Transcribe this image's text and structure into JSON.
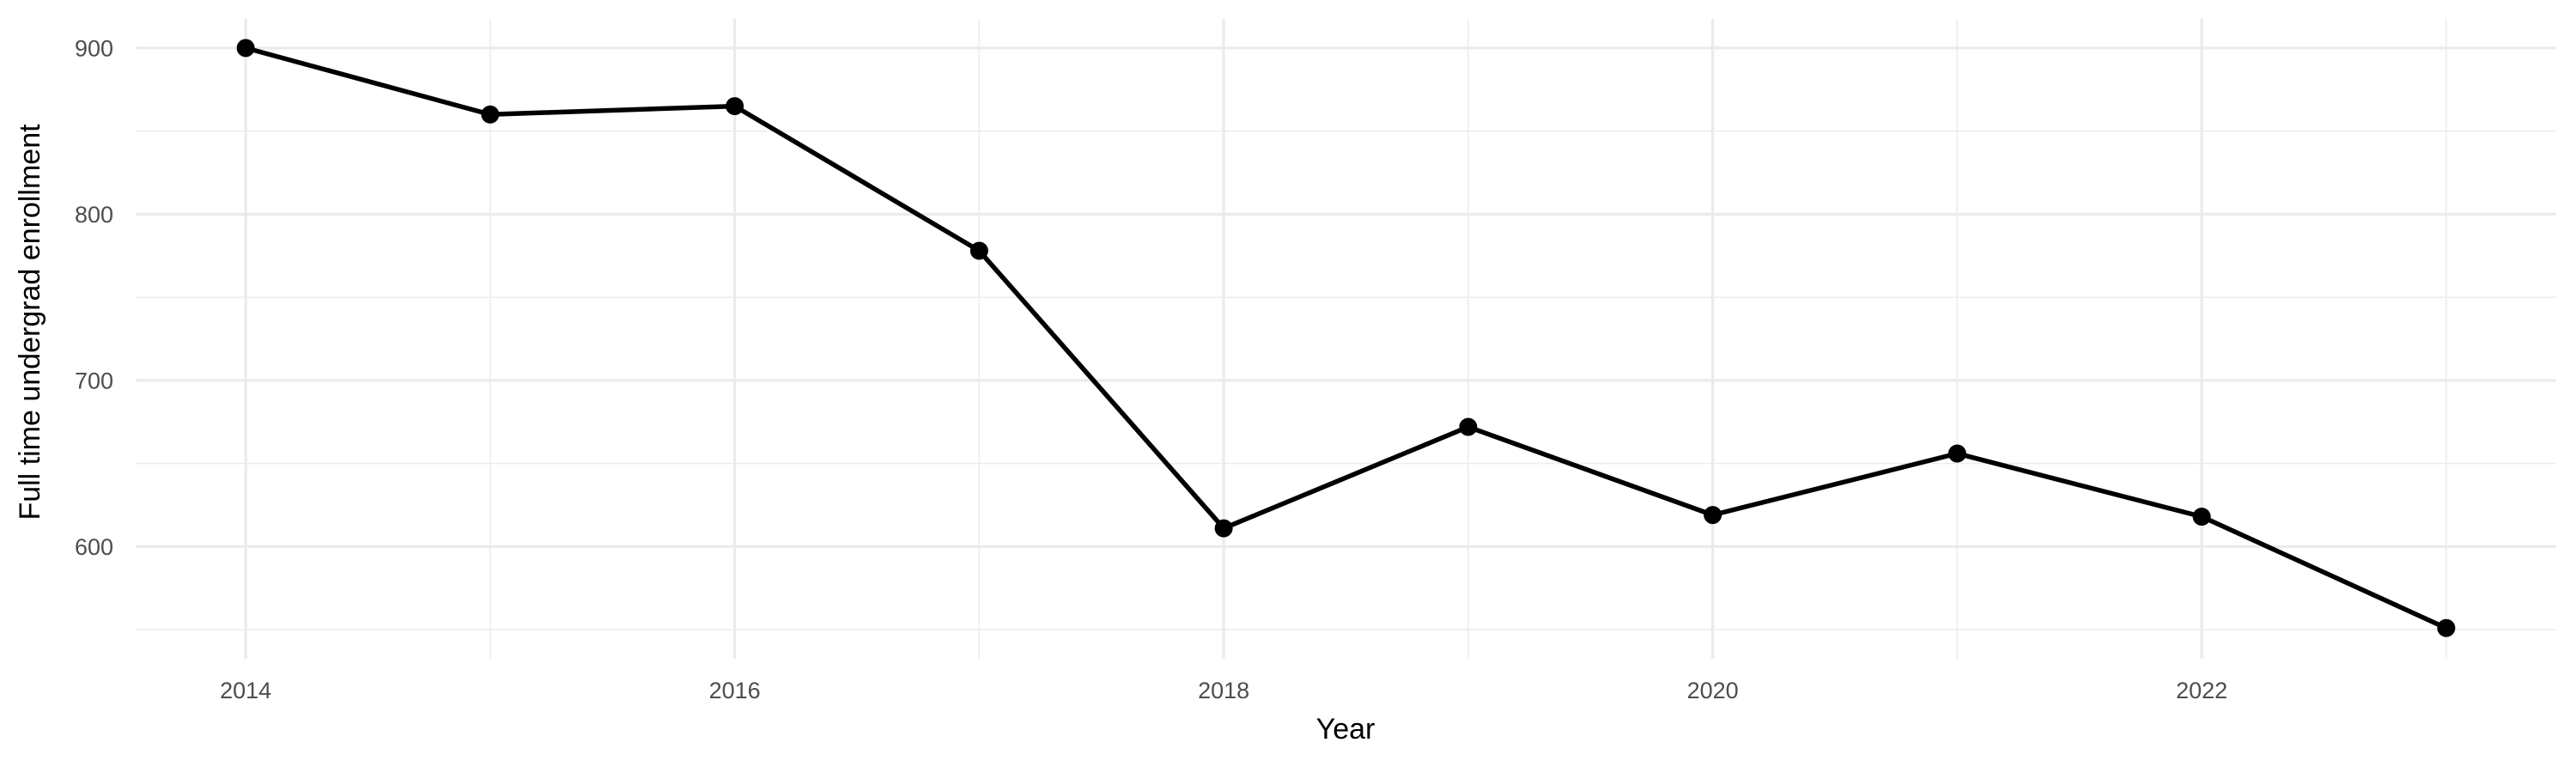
{
  "chart_data": {
    "type": "line",
    "title": "",
    "xlabel": "Year",
    "ylabel": "Full time undergrad enrollment",
    "series": [
      {
        "name": "Full time undergrad enrollment",
        "x": [
          2014,
          2015,
          2016,
          2017,
          2018,
          2019,
          2020,
          2021,
          2022,
          2023
        ],
        "values": [
          900,
          860,
          865,
          778,
          611,
          672,
          619,
          656,
          618,
          551
        ]
      }
    ],
    "x_major_ticks": [
      2014,
      2016,
      2018,
      2020,
      2022
    ],
    "x_minor_gridlines": [
      2015,
      2017,
      2019,
      2021,
      2023
    ],
    "y_major_ticks": [
      600,
      700,
      800,
      900
    ],
    "y_minor_gridlines": [
      550,
      650,
      750,
      850
    ],
    "xlim": [
      2013.55,
      2023.45
    ],
    "ylim": [
      532.5,
      917.5
    ],
    "grid": true,
    "legend_position": "none",
    "colors": {
      "line": "#000000",
      "point": "#000000",
      "grid_major": "#EBEBEB",
      "grid_minor": "#ECECEC",
      "tick_label": "#4D4D4D",
      "axis_title": "#000000",
      "panel_background": "#FFFFFF"
    }
  }
}
